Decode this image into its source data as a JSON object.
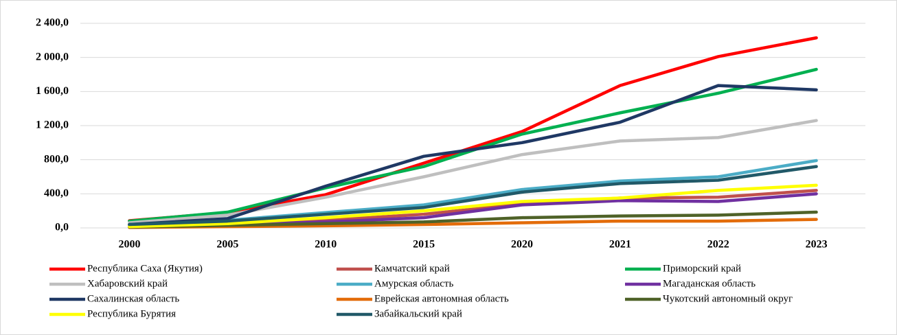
{
  "chart_data": {
    "type": "line",
    "categories": [
      "2000",
      "2005",
      "2010",
      "2015",
      "2020",
      "2021",
      "2022",
      "2023"
    ],
    "ylim": [
      0,
      2400
    ],
    "yticks": [
      {
        "value": 0,
        "label": "0,0"
      },
      {
        "value": 400,
        "label": "400,0"
      },
      {
        "value": 800,
        "label": "800,0"
      },
      {
        "value": 1200,
        "label": "1 200,0"
      },
      {
        "value": 1600,
        "label": "1 600,0"
      },
      {
        "value": 2000,
        "label": "2 000,0"
      },
      {
        "value": 2400,
        "label": "2 400,0"
      }
    ],
    "grid": true,
    "legend": "bottom",
    "series": [
      {
        "name": "Республика Саха (Якутия)",
        "color": "#ff0000",
        "values": [
          85,
          180,
          390,
          760,
          1130,
          1670,
          2010,
          2230
        ]
      },
      {
        "name": "Камчатский край",
        "color": "#c0504d",
        "values": [
          40,
          60,
          90,
          160,
          280,
          350,
          360,
          440
        ]
      },
      {
        "name": "Приморский край",
        "color": "#00b050",
        "values": [
          80,
          185,
          470,
          720,
          1100,
          1350,
          1580,
          1860
        ]
      },
      {
        "name": "Хабаровский край",
        "color": "#bfbfbf",
        "values": [
          60,
          150,
          360,
          600,
          860,
          1020,
          1060,
          1260
        ]
      },
      {
        "name": "Амурская область",
        "color": "#4bacc6",
        "values": [
          30,
          90,
          180,
          270,
          450,
          550,
          600,
          790
        ]
      },
      {
        "name": "Магаданская область",
        "color": "#7030a0",
        "values": [
          20,
          40,
          70,
          120,
          270,
          320,
          310,
          400
        ]
      },
      {
        "name": "Сахалинская область",
        "color": "#1f3864",
        "values": [
          40,
          110,
          490,
          840,
          1000,
          1240,
          1670,
          1620
        ]
      },
      {
        "name": "Еврейская автономная область",
        "color": "#e36c0a",
        "values": [
          5,
          15,
          25,
          40,
          60,
          80,
          80,
          100
        ]
      },
      {
        "name": "Чукотский автономный округ",
        "color": "#4f6228",
        "values": [
          10,
          30,
          50,
          70,
          120,
          140,
          150,
          185
        ]
      },
      {
        "name": "Республика Бурятия",
        "color": "#ffff00",
        "values": [
          15,
          50,
          120,
          200,
          310,
          350,
          440,
          500
        ]
      },
      {
        "name": "Забайкальский край",
        "color": "#215968",
        "values": [
          40,
          80,
          160,
          240,
          420,
          520,
          560,
          720
        ]
      }
    ]
  }
}
